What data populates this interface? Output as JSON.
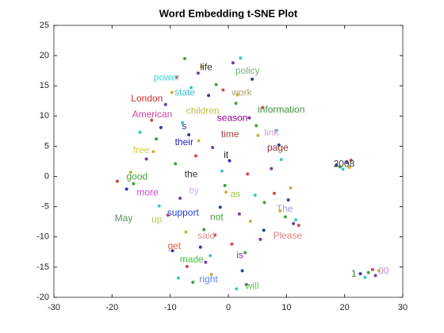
{
  "chart_data": {
    "type": "scatter",
    "title": "Word Embedding t-SNE Plot",
    "xlim": [
      -30,
      30
    ],
    "xticks": [
      -30,
      -20,
      -10,
      0,
      10,
      20,
      30
    ],
    "ylim": [
      -20,
      25
    ],
    "yticks": [
      -20,
      -15,
      -10,
      -5,
      0,
      5,
      10,
      15,
      20,
      25
    ],
    "series": [
      {
        "color": "#3aa63a",
        "x": [
          -7.5,
          -2.1,
          1.3,
          4.8,
          -12.4,
          -9.1,
          -0.6,
          6.2,
          -16.3,
          -4.2,
          2.9,
          9.8,
          19.2,
          24.1,
          -6.1
        ],
        "y": [
          19.5,
          15.2,
          12.1,
          8.4,
          6.2,
          2.1,
          -1.5,
          -4.3,
          -1.2,
          -8.8,
          -12.6,
          -6.7,
          1.6,
          -15.9,
          -17.5
        ]
      },
      {
        "color": "#7a3aa6",
        "x": [
          -5.2,
          0.8,
          3.6,
          -10.8,
          -2.7,
          7.4,
          -14.1,
          -8.3,
          1.9,
          5.5,
          -3.9,
          11.2,
          20.4,
          25.3,
          3.1
        ],
        "y": [
          17.1,
          18.8,
          9.7,
          11.9,
          4.8,
          1.3,
          2.9,
          -3.6,
          -6.2,
          -10.4,
          -14.2,
          -7.8,
          2.3,
          -16.4,
          -17.9
        ]
      },
      {
        "color": "#2d3aa8",
        "x": [
          -3.4,
          4.1,
          -11.6,
          -6.8,
          0.2,
          8.7,
          -17.5,
          -1.4,
          6.1,
          -9.6,
          2.4,
          10.3,
          18.6,
          22.7,
          -4.8
        ],
        "y": [
          13.4,
          16.1,
          8.1,
          6.9,
          2.6,
          5.2,
          -2.1,
          -5.1,
          -8.9,
          -12.3,
          -15.6,
          -3.9,
          1.9,
          -16.1,
          -11.7
        ]
      },
      {
        "color": "#d04a4a",
        "x": [
          -8.9,
          -0.9,
          5.9,
          -13.2,
          -5.6,
          3.3,
          -19.1,
          -2.3,
          7.9,
          -10.4,
          0.6,
          12.1,
          21.1,
          24.8,
          -7.1
        ],
        "y": [
          16.4,
          14.3,
          11.4,
          9.3,
          3.4,
          0.4,
          -0.8,
          -9.7,
          -2.8,
          -6.4,
          -11.2,
          -8.1,
          2.7,
          -15.4,
          -14.9
        ]
      },
      {
        "color": "#3ac8c8",
        "x": [
          -6.4,
          2.1,
          8.3,
          -15.2,
          -7.9,
          -1.1,
          4.6,
          -11.9,
          -3.1,
          9.1,
          -8.6,
          1.4,
          19.7,
          23.5,
          11.6
        ],
        "y": [
          14.7,
          19.6,
          7.6,
          7.3,
          8.9,
          0.9,
          -3.1,
          -4.9,
          -13.1,
          2.8,
          -16.8,
          -18.6,
          1.2,
          -16.7,
          -7.2
        ]
      },
      {
        "color": "#c8b43a",
        "x": [
          -4.6,
          1.6,
          -9.7,
          -12.9,
          -5.1,
          5.1,
          -16.8,
          -0.4,
          8.9,
          -7.3,
          3.8,
          10.7,
          20.8,
          25.9,
          -2.9
        ],
        "y": [
          18.2,
          13.5,
          13.9,
          4.1,
          5.9,
          6.8,
          0.7,
          -2.6,
          -5.7,
          -9.2,
          -7.4,
          -1.9,
          1.5,
          -15.6,
          -16.2
        ]
      }
    ],
    "annotations": [
      {
        "text": "life",
        "x": -3.8,
        "y": 18.0,
        "color": "#333333"
      },
      {
        "text": "policy",
        "x": 3.3,
        "y": 17.4,
        "color": "#7fa97f"
      },
      {
        "text": "power",
        "x": -10.6,
        "y": 16.3,
        "color": "#40d0d0"
      },
      {
        "text": "state",
        "x": -7.5,
        "y": 13.8,
        "color": "#40c0c0"
      },
      {
        "text": "work",
        "x": 2.3,
        "y": 13.8,
        "color": "#b0a070"
      },
      {
        "text": "London",
        "x": -14.0,
        "y": 12.8,
        "color": "#d03030"
      },
      {
        "text": "children",
        "x": -4.4,
        "y": 10.8,
        "color": "#c0c040"
      },
      {
        "text": "information",
        "x": 9.1,
        "y": 11.0,
        "color": "#409040"
      },
      {
        "text": "American",
        "x": -13.1,
        "y": 10.2,
        "color": "#d040a0"
      },
      {
        "text": "season",
        "x": 0.7,
        "y": 9.6,
        "color": "#900090"
      },
      {
        "text": "s",
        "x": -7.6,
        "y": 8.2,
        "color": "#2020a0"
      },
      {
        "text": "time",
        "x": 0.3,
        "y": 6.9,
        "color": "#a04040"
      },
      {
        "text": "link",
        "x": 7.4,
        "y": 7.2,
        "color": "#d0a0d0"
      },
      {
        "text": "their",
        "x": -7.6,
        "y": 5.6,
        "color": "#2020c0"
      },
      {
        "text": "page",
        "x": 8.5,
        "y": 4.7,
        "color": "#903030"
      },
      {
        "text": "free",
        "x": -15.0,
        "y": 4.3,
        "color": "#d0d040"
      },
      {
        "text": "it",
        "x": -0.4,
        "y": 3.5,
        "color": "#202020"
      },
      {
        "text": "2008",
        "x": 19.9,
        "y": 2.0,
        "color": "#404040"
      },
      {
        "text": "the",
        "x": -6.4,
        "y": 0.3,
        "color": "#303030"
      },
      {
        "text": "good",
        "x": -15.7,
        "y": -0.1,
        "color": "#40a040"
      },
      {
        "text": "more",
        "x": -13.9,
        "y": -2.7,
        "color": "#d040d0"
      },
      {
        "text": "by",
        "x": -5.9,
        "y": -2.4,
        "color": "#d0b0e0"
      },
      {
        "text": "as",
        "x": 1.2,
        "y": -3.0,
        "color": "#a0c040"
      },
      {
        "text": "The",
        "x": 9.7,
        "y": -5.4,
        "color": "#a0a0d0"
      },
      {
        "text": "support",
        "x": -7.8,
        "y": -6.1,
        "color": "#2040d0"
      },
      {
        "text": "not",
        "x": -2.0,
        "y": -6.8,
        "color": "#40a040"
      },
      {
        "text": "May",
        "x": -18.0,
        "y": -7.0,
        "color": "#609060"
      },
      {
        "text": "up",
        "x": -12.3,
        "y": -7.2,
        "color": "#b0d040"
      },
      {
        "text": "said",
        "x": -3.8,
        "y": -9.9,
        "color": "#e09090"
      },
      {
        "text": "Please",
        "x": 10.2,
        "y": -9.9,
        "color": "#e08080"
      },
      {
        "text": "get",
        "x": -9.3,
        "y": -11.6,
        "color": "#e06040"
      },
      {
        "text": "made",
        "x": -6.3,
        "y": -13.8,
        "color": "#40c040"
      },
      {
        "text": "is",
        "x": 2.0,
        "y": -13.1,
        "color": "#9020a0"
      },
      {
        "text": "1",
        "x": 21.6,
        "y": -16.2,
        "color": "#308030"
      },
      {
        "text": "00",
        "x": 26.7,
        "y": -15.7,
        "color": "#c090e0"
      },
      {
        "text": "right",
        "x": -3.4,
        "y": -17.1,
        "color": "#6080e0"
      },
      {
        "text": "will",
        "x": 4.1,
        "y": -18.2,
        "color": "#60d040"
      }
    ]
  }
}
